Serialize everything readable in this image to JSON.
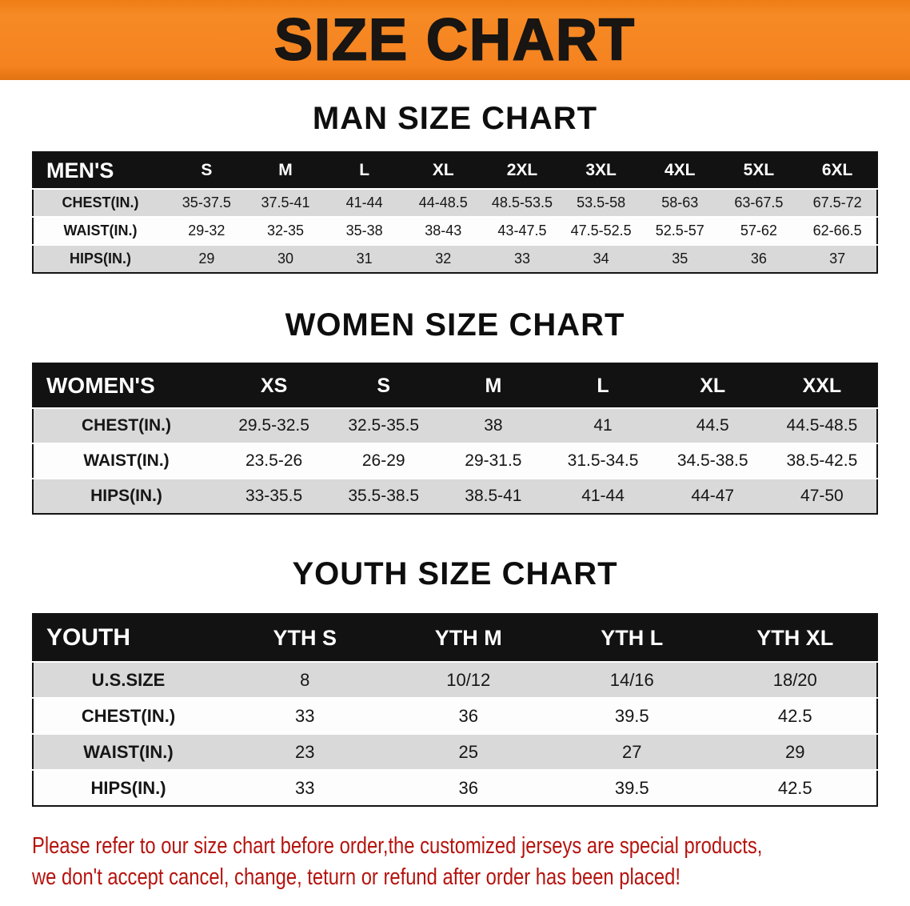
{
  "banner": {
    "title": "SIZE CHART",
    "bg_color": "#f5831f",
    "text_color": "#181512"
  },
  "chart_data": [
    {
      "type": "table",
      "title": "MAN SIZE CHART",
      "columns": [
        "MEN'S",
        "S",
        "M",
        "L",
        "XL",
        "2XL",
        "3XL",
        "4XL",
        "5XL",
        "6XL"
      ],
      "rows": [
        [
          "CHEST(IN.)",
          "35-37.5",
          "37.5-41",
          "41-44",
          "44-48.5",
          "48.5-53.5",
          "53.5-58",
          "58-63",
          "63-67.5",
          "67.5-72"
        ],
        [
          "WAIST(IN.)",
          "29-32",
          "32-35",
          "35-38",
          "38-43",
          "43-47.5",
          "47.5-52.5",
          "52.5-57",
          "57-62",
          "62-66.5"
        ],
        [
          "HIPS(IN.)",
          "29",
          "30",
          "31",
          "32",
          "33",
          "34",
          "35",
          "36",
          "37"
        ]
      ]
    },
    {
      "type": "table",
      "title": "WOMEN SIZE CHART",
      "columns": [
        "WOMEN'S",
        "XS",
        "S",
        "M",
        "L",
        "XL",
        "XXL"
      ],
      "rows": [
        [
          "CHEST(IN.)",
          "29.5-32.5",
          "32.5-35.5",
          "38",
          "41",
          "44.5",
          "44.5-48.5"
        ],
        [
          "WAIST(IN.)",
          "23.5-26",
          "26-29",
          "29-31.5",
          "31.5-34.5",
          "34.5-38.5",
          "38.5-42.5"
        ],
        [
          "HIPS(IN.)",
          "33-35.5",
          "35.5-38.5",
          "38.5-41",
          "41-44",
          "44-47",
          "47-50"
        ]
      ]
    },
    {
      "type": "table",
      "title": "YOUTH SIZE CHART",
      "columns": [
        "YOUTH",
        "YTH S",
        "YTH M",
        "YTH L",
        "YTH XL"
      ],
      "rows": [
        [
          "U.S.SIZE",
          "8",
          "10/12",
          "14/16",
          "18/20"
        ],
        [
          "CHEST(IN.)",
          "33",
          "36",
          "39.5",
          "42.5"
        ],
        [
          "WAIST(IN.)",
          "23",
          "25",
          "27",
          "29"
        ],
        [
          "HIPS(IN.)",
          "33",
          "36",
          "39.5",
          "42.5"
        ]
      ]
    }
  ],
  "footer_note": {
    "line1": "Please refer to our size chart before order,the customized jerseys are special products,",
    "line2": "we don't accept cancel, change, teturn or refund after order has been placed!",
    "color": "#b5130e"
  }
}
